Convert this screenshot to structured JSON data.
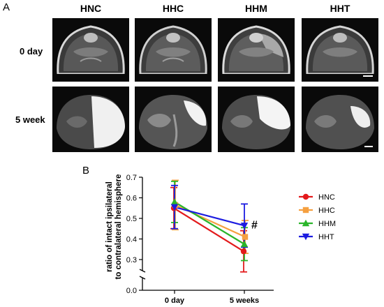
{
  "panel_a": {
    "letter": "A",
    "columns": [
      "HNC",
      "HHC",
      "HHM",
      "HHT"
    ],
    "rows": [
      "0 day",
      "5 week"
    ]
  },
  "panel_b": {
    "letter": "B",
    "sig_mark": "#"
  },
  "chart_data": {
    "type": "line",
    "categories": [
      "0 day",
      "5 weeks"
    ],
    "ylabel": "ratio of intact ipsilateral to contralateral hemisphere",
    "ylim": [
      0.0,
      0.7
    ],
    "yticks": [
      0.0,
      0.3,
      0.4,
      0.5,
      0.6,
      0.7
    ],
    "yaxis_break": true,
    "grid": false,
    "legend_position": "right",
    "series": [
      {
        "name": "HNC",
        "marker": "circle",
        "color": "#e31a1c",
        "values": [
          0.55,
          0.34
        ],
        "errors": [
          0.1,
          0.1
        ]
      },
      {
        "name": "HHC",
        "marker": "square",
        "color": "#f5a040",
        "values": [
          0.565,
          0.41
        ],
        "errors": [
          0.12,
          0.08
        ]
      },
      {
        "name": "HHM",
        "marker": "triangle",
        "color": "#2ab52a",
        "values": [
          0.58,
          0.375
        ],
        "errors": [
          0.1,
          0.08
        ]
      },
      {
        "name": "HHT",
        "marker": "triangle-down",
        "color": "#1c1ce0",
        "values": [
          0.555,
          0.465
        ],
        "errors": [
          0.105,
          0.105
        ]
      }
    ]
  }
}
